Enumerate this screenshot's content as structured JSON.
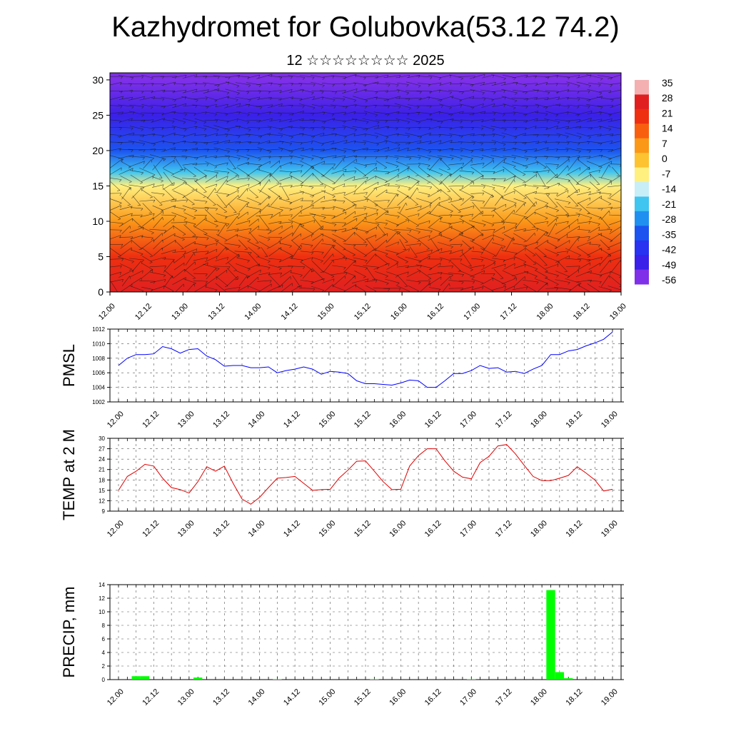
{
  "header": {
    "title": "Kazhydromet for Golubovka(53.12 74.2)",
    "subtitle": "12 ☆☆☆☆☆☆☆☆ 2025"
  },
  "chart_data": [
    {
      "type": "heatmap",
      "title": "",
      "xlabel": "",
      "ylabel": "",
      "x_ticks": [
        "12.00",
        "12.12",
        "13.00",
        "13.12",
        "14.00",
        "14.12",
        "15.00",
        "15.12",
        "16.00",
        "16.12",
        "17.00",
        "17.12",
        "18.00",
        "18.12",
        "19.00"
      ],
      "y_ticks": [
        0,
        5,
        10,
        15,
        20,
        25,
        30
      ],
      "ylim": [
        0,
        31
      ],
      "temperature_by_height": [
        {
          "height": 0,
          "value": 28
        },
        {
          "height": 5,
          "value": 18
        },
        {
          "height": 10,
          "value": 7
        },
        {
          "height": 15,
          "value": -10
        },
        {
          "height": 17,
          "value": -18
        },
        {
          "height": 20,
          "value": -35
        },
        {
          "height": 25,
          "value": -50
        },
        {
          "height": 30,
          "value": -56
        }
      ],
      "colorbar": {
        "labels": [
          "35",
          "28",
          "21",
          "14",
          "7",
          "0",
          "-7",
          "-14",
          "-21",
          "-28",
          "-35",
          "-42",
          "-49",
          "-56"
        ],
        "colors": [
          "#f4b0b0",
          "#e02020",
          "#ee3010",
          "#f86010",
          "#fb9818",
          "#fdc330",
          "#fff080",
          "#c8eef8",
          "#40c4f0",
          "#2090f0",
          "#1c54f0",
          "#2832f0",
          "#3a20e8",
          "#7f30e8"
        ]
      }
    },
    {
      "type": "line",
      "title": "",
      "xlabel": "",
      "ylabel": "PMSL",
      "ylim": [
        1002,
        1012
      ],
      "y_ticks": [
        1002,
        1004,
        1006,
        1008,
        1010,
        1012
      ],
      "x_ticks": [
        "12.00",
        "12.12",
        "13.00",
        "13.12",
        "14.00",
        "14.12",
        "15.00",
        "15.12",
        "16.00",
        "16.12",
        "17.00",
        "17.12",
        "18.00",
        "18.12",
        "19.00"
      ],
      "color": "#0000ff",
      "values": [
        1007.0,
        1008.0,
        1008.5,
        1008.5,
        1008.6,
        1009.6,
        1009.3,
        1008.7,
        1009.2,
        1009.3,
        1008.3,
        1007.8,
        1006.9,
        1007.0,
        1007.0,
        1006.7,
        1006.7,
        1006.8,
        1006.0,
        1006.3,
        1006.5,
        1006.8,
        1006.5,
        1005.8,
        1006.2,
        1006.1,
        1005.9,
        1004.9,
        1004.5,
        1004.5,
        1004.4,
        1004.3,
        1004.6,
        1005.0,
        1004.9,
        1004.0,
        1004.0,
        1004.9,
        1005.9,
        1005.9,
        1006.3,
        1007.0,
        1006.6,
        1006.7,
        1006.1,
        1006.2,
        1005.9,
        1006.5,
        1007.0,
        1008.5,
        1008.5,
        1009.0,
        1009.2,
        1009.7,
        1010.1,
        1010.6,
        1011.6
      ]
    },
    {
      "type": "line",
      "title": "",
      "xlabel": "",
      "ylabel": "TEMP at 2 M",
      "ylim": [
        9,
        30
      ],
      "y_ticks": [
        9,
        12,
        15,
        18,
        21,
        24,
        27,
        30
      ],
      "x_ticks": [
        "12.00",
        "12.12",
        "13.00",
        "13.12",
        "14.00",
        "14.12",
        "15.00",
        "15.12",
        "16.00",
        "16.12",
        "17.00",
        "17.12",
        "18.00",
        "18.12",
        "19.00"
      ],
      "color": "#e00000",
      "values": [
        15.0,
        19.0,
        20.5,
        22.5,
        22.0,
        18.5,
        15.8,
        15.2,
        14.2,
        17.5,
        21.8,
        20.5,
        22.0,
        17.0,
        12.5,
        11.0,
        13.0,
        15.8,
        18.5,
        18.7,
        19.0,
        17.0,
        15.0,
        15.2,
        15.3,
        18.5,
        20.8,
        23.4,
        23.5,
        20.5,
        17.5,
        15.2,
        15.3,
        22.0,
        25.0,
        27.0,
        27.0,
        23.5,
        20.5,
        18.8,
        18.3,
        23.0,
        24.8,
        27.8,
        28.2,
        25.5,
        22.2,
        19.0,
        17.8,
        17.8,
        18.5,
        19.3,
        21.8,
        20.0,
        18.0,
        14.8,
        15.3
      ]
    },
    {
      "type": "bar",
      "title": "",
      "xlabel": "",
      "ylabel": "PRECIP, mm",
      "ylim": [
        0,
        14
      ],
      "y_ticks": [
        0,
        2,
        4,
        6,
        8,
        10,
        12,
        14
      ],
      "x_ticks": [
        "12.00",
        "12.12",
        "13.00",
        "13.12",
        "14.00",
        "14.12",
        "15.00",
        "15.12",
        "16.00",
        "16.12",
        "17.00",
        "17.12",
        "18.00",
        "18.12",
        "19.00"
      ],
      "color": "#00ff00",
      "bars": [
        {
          "x": 2,
          "value": 0.5
        },
        {
          "x": 3,
          "value": 0.5
        },
        {
          "x": 9,
          "value": 0.3
        },
        {
          "x": 18,
          "value": 0.05
        },
        {
          "x": 29,
          "value": 0.05
        },
        {
          "x": 40,
          "value": 0.05
        },
        {
          "x": 49,
          "value": 13.2
        },
        {
          "x": 50,
          "value": 1.1
        },
        {
          "x": 51,
          "value": 0.2
        }
      ]
    }
  ]
}
